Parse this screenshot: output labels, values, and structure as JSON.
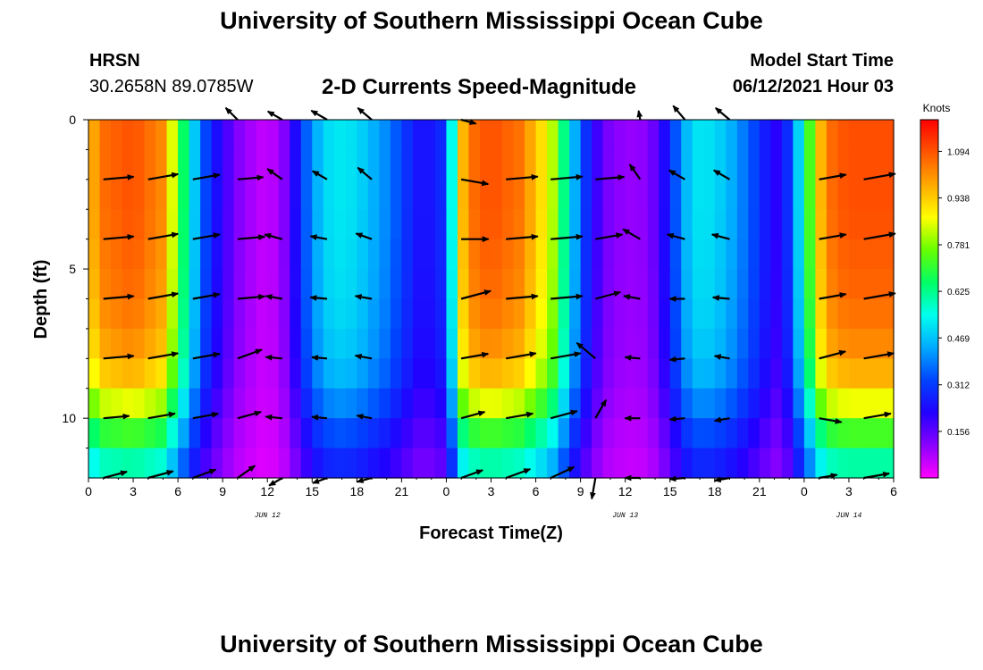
{
  "header": {
    "title": "University of Southern Mississippi Ocean Cube",
    "station": "HRSN",
    "coordinates": "30.2658N  89.0785W",
    "subtitle": "2-D Currents Speed-Magnitude",
    "model_start_label": "Model Start Time",
    "model_start_value": "06/12/2021 Hour 03"
  },
  "footer": {
    "title": "University of Southern Mississippi Ocean Cube"
  },
  "chart_data": {
    "type": "heatmap",
    "title": "2-D Currents Speed-Magnitude",
    "xlabel": "Forecast Time(Z)",
    "ylabel": "Depth (ft)",
    "x_range_hours": [
      0,
      54
    ],
    "y_range_ft": [
      0,
      12
    ],
    "y_reversed": true,
    "x_ticks": [
      {
        "hour": 0,
        "label": "0"
      },
      {
        "hour": 3,
        "label": "3"
      },
      {
        "hour": 6,
        "label": "6"
      },
      {
        "hour": 9,
        "label": "9"
      },
      {
        "hour": 12,
        "label": "12"
      },
      {
        "hour": 15,
        "label": "15"
      },
      {
        "hour": 18,
        "label": "18"
      },
      {
        "hour": 21,
        "label": "21"
      },
      {
        "hour": 24,
        "label": "0"
      },
      {
        "hour": 27,
        "label": "3"
      },
      {
        "hour": 30,
        "label": "6"
      },
      {
        "hour": 33,
        "label": "9"
      },
      {
        "hour": 36,
        "label": "12"
      },
      {
        "hour": 39,
        "label": "15"
      },
      {
        "hour": 42,
        "label": "18"
      },
      {
        "hour": 45,
        "label": "21"
      },
      {
        "hour": 48,
        "label": "0"
      },
      {
        "hour": 51,
        "label": "3"
      },
      {
        "hour": 54,
        "label": "6"
      }
    ],
    "y_ticks": [
      {
        "depth": 0,
        "label": "0"
      },
      {
        "depth": 5,
        "label": "5"
      },
      {
        "depth": 10,
        "label": "10"
      }
    ],
    "date_labels": [
      {
        "hour": 12,
        "label": "JUN 12"
      },
      {
        "hour": 36,
        "label": "JUN 13"
      },
      {
        "hour": 51,
        "label": "JUN 14"
      }
    ],
    "colorbar": {
      "unit": "Knots",
      "min": 0.0,
      "max": 1.2,
      "ticks": [
        "1.094",
        "0.938",
        "0.781",
        "0.625",
        "0.469",
        "0.312",
        "0.156"
      ],
      "tick_values": [
        1.094,
        0.938,
        0.781,
        0.625,
        0.469,
        0.312,
        0.156
      ],
      "colors": [
        "#ff00ff",
        "#8b00ff",
        "#2200ff",
        "#0044ff",
        "#00aaff",
        "#00ffee",
        "#00ff66",
        "#66ff00",
        "#ffff00",
        "#ffaa00",
        "#ff5500",
        "#ff0000"
      ]
    },
    "speed_profile": {
      "hours": [
        0,
        1,
        3,
        5,
        6,
        7,
        8,
        9,
        10,
        11,
        12,
        13,
        14,
        15,
        16,
        17,
        18,
        19,
        20,
        21,
        22,
        23,
        24,
        25,
        26,
        27,
        29,
        31,
        32,
        33,
        34,
        35,
        36,
        37,
        38,
        39,
        40,
        41,
        42,
        43,
        44,
        45,
        46,
        47,
        48,
        49,
        50,
        51,
        54
      ],
      "speed_knots": [
        0.95,
        1.06,
        1.1,
        1.02,
        0.75,
        0.5,
        0.3,
        0.2,
        0.12,
        0.08,
        0.05,
        0.1,
        0.25,
        0.42,
        0.5,
        0.52,
        0.5,
        0.45,
        0.4,
        0.32,
        0.25,
        0.25,
        0.3,
        0.95,
        1.08,
        1.1,
        1.05,
        0.85,
        0.6,
        0.35,
        0.2,
        0.12,
        0.1,
        0.1,
        0.15,
        0.28,
        0.45,
        0.52,
        0.5,
        0.45,
        0.38,
        0.3,
        0.2,
        0.3,
        0.6,
        0.95,
        1.08,
        1.1,
        1.1
      ]
    },
    "depth_factor": {
      "depths_ft": [
        0,
        3,
        6,
        8,
        9,
        10,
        11,
        12
      ],
      "factor": [
        1.0,
        1.0,
        0.97,
        0.92,
        0.85,
        0.72,
        0.6,
        0.5
      ]
    },
    "vectors": {
      "rows_depth_ft": [
        0,
        2,
        4,
        6,
        8,
        10,
        12
      ],
      "columns_hour": [
        1,
        4,
        7,
        10,
        13,
        16,
        19,
        25,
        28,
        31,
        34,
        37,
        40,
        43,
        49,
        52
      ],
      "angles_deg": [
        [
          0,
          0,
          0,
          -135,
          -150,
          -150,
          -140,
          15,
          0,
          0,
          0,
          -100,
          -130,
          -140,
          0,
          0
        ],
        [
          -5,
          -10,
          -10,
          -5,
          -145,
          -150,
          -140,
          10,
          -5,
          -5,
          -5,
          -125,
          -150,
          -150,
          -10,
          -10
        ],
        [
          -5,
          -10,
          -10,
          -5,
          -165,
          -170,
          -160,
          0,
          -5,
          -5,
          -10,
          -150,
          -165,
          -165,
          -10,
          -10
        ],
        [
          -5,
          -10,
          -10,
          -5,
          -170,
          -175,
          -170,
          -15,
          -5,
          -5,
          -15,
          -170,
          180,
          -175,
          -10,
          -10
        ],
        [
          -5,
          -10,
          -10,
          -20,
          -175,
          -175,
          -170,
          -10,
          -10,
          -10,
          -140,
          -175,
          175,
          -170,
          -15,
          -10
        ],
        [
          -5,
          -10,
          -10,
          -15,
          -175,
          -175,
          -170,
          -15,
          -10,
          -15,
          -60,
          180,
          175,
          170,
          10,
          -10
        ],
        [
          -15,
          -15,
          -20,
          -35,
          150,
          160,
          165,
          -20,
          -20,
          -25,
          100,
          180,
          175,
          170,
          -10,
          -10
        ]
      ],
      "length_knots": [
        [
          0.0,
          0.0,
          0.0,
          0.55,
          0.55,
          0.6,
          0.6,
          0.5,
          0.0,
          0.0,
          0.0,
          0.3,
          0.6,
          0.6,
          0.0,
          0.0
        ],
        [
          1.0,
          1.0,
          0.9,
          0.85,
          0.6,
          0.55,
          0.6,
          0.9,
          1.05,
          1.05,
          0.95,
          0.6,
          0.6,
          0.6,
          0.9,
          1.05
        ],
        [
          1.0,
          1.0,
          0.9,
          0.9,
          0.6,
          0.55,
          0.55,
          0.9,
          1.05,
          1.05,
          0.9,
          0.65,
          0.6,
          0.6,
          0.9,
          1.05
        ],
        [
          1.0,
          1.0,
          0.9,
          0.9,
          0.55,
          0.55,
          0.55,
          1.0,
          1.05,
          1.05,
          0.85,
          0.55,
          0.5,
          0.55,
          0.9,
          1.05
        ],
        [
          1.0,
          1.0,
          0.9,
          0.85,
          0.55,
          0.5,
          0.55,
          0.9,
          1.0,
          1.0,
          0.8,
          0.5,
          0.5,
          0.5,
          0.9,
          1.0
        ],
        [
          0.85,
          0.9,
          0.85,
          0.8,
          0.55,
          0.5,
          0.5,
          0.8,
          0.9,
          0.9,
          0.7,
          0.5,
          0.5,
          0.5,
          0.75,
          0.9
        ],
        [
          0.8,
          0.85,
          0.8,
          0.7,
          0.5,
          0.5,
          0.5,
          0.75,
          0.85,
          0.85,
          0.7,
          0.5,
          0.5,
          0.5,
          0.6,
          0.85
        ]
      ]
    }
  }
}
